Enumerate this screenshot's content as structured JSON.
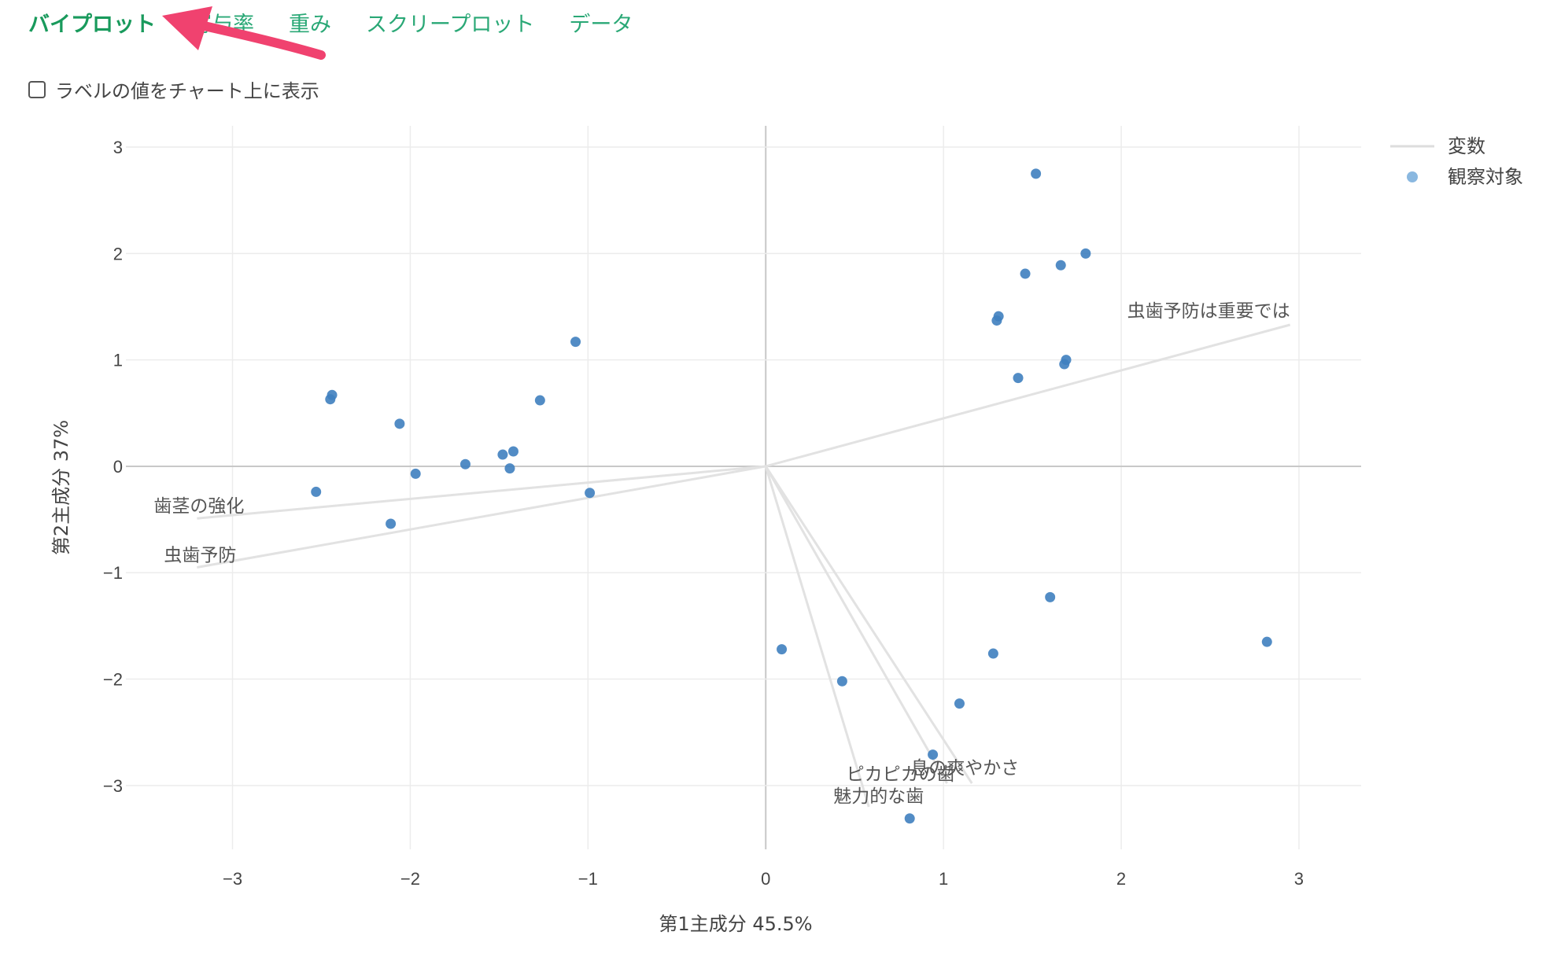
{
  "tabs": [
    {
      "label": "バイプロット",
      "active": true
    },
    {
      "label": "寄与率",
      "active": false
    },
    {
      "label": "重み",
      "active": false
    },
    {
      "label": "スクリープロット",
      "active": false
    },
    {
      "label": "データ",
      "active": false
    }
  ],
  "label_toggle": {
    "label": "ラベルの値をチャート上に表示",
    "checked": false
  },
  "colors": {
    "tab_text": "#2aa876",
    "point": "#3f7fbf",
    "variable_line": "#e2e2e2",
    "annotation_arrow": "#f0426f"
  },
  "chart_data": {
    "type": "scatter",
    "xlabel": "第1主成分 45.5%",
    "ylabel": "第2主成分 37%",
    "xlim": [
      -3.6,
      3.35
    ],
    "ylim": [
      -3.6,
      3.2
    ],
    "x_ticks": [
      -3,
      -2,
      -1,
      0,
      1,
      2,
      3
    ],
    "x_tick_labels": [
      "−3",
      "−2",
      "−1",
      "0",
      "1",
      "2",
      "3"
    ],
    "y_ticks": [
      3,
      2,
      1,
      0,
      -1,
      -2,
      -3
    ],
    "y_tick_labels": [
      "3",
      "2",
      "1",
      "0",
      "−1",
      "−2",
      "−3"
    ],
    "grid": true,
    "legend_position": "top-right",
    "legend": [
      {
        "label": "変数",
        "symbol": "line"
      },
      {
        "label": "観察対象",
        "symbol": "marker"
      }
    ],
    "observations": [
      {
        "x": 1.52,
        "y": 2.75
      },
      {
        "x": 1.8,
        "y": 2.0
      },
      {
        "x": 1.66,
        "y": 1.89
      },
      {
        "x": 1.46,
        "y": 1.81
      },
      {
        "x": 1.31,
        "y": 1.41
      },
      {
        "x": 1.3,
        "y": 1.37
      },
      {
        "x": 1.69,
        "y": 1.0
      },
      {
        "x": 1.68,
        "y": 0.96
      },
      {
        "x": 1.42,
        "y": 0.83
      },
      {
        "x": -1.07,
        "y": 1.17
      },
      {
        "x": -1.27,
        "y": 0.62
      },
      {
        "x": -2.44,
        "y": 0.67
      },
      {
        "x": -2.45,
        "y": 0.63
      },
      {
        "x": -2.06,
        "y": 0.4
      },
      {
        "x": -1.42,
        "y": 0.14
      },
      {
        "x": -1.48,
        "y": 0.11
      },
      {
        "x": -1.69,
        "y": 0.02
      },
      {
        "x": -1.44,
        "y": -0.02
      },
      {
        "x": -1.97,
        "y": -0.07
      },
      {
        "x": -2.53,
        "y": -0.24
      },
      {
        "x": -0.99,
        "y": -0.25
      },
      {
        "x": -2.11,
        "y": -0.54
      },
      {
        "x": 1.6,
        "y": -1.23
      },
      {
        "x": 2.82,
        "y": -1.65
      },
      {
        "x": 0.09,
        "y": -1.72
      },
      {
        "x": 1.28,
        "y": -1.76
      },
      {
        "x": 0.43,
        "y": -2.02
      },
      {
        "x": 1.09,
        "y": -2.23
      },
      {
        "x": 0.94,
        "y": -2.71
      },
      {
        "x": 0.81,
        "y": -3.31
      }
    ],
    "variables": [
      {
        "name": "虫歯予防は重要では",
        "x": 2.95,
        "y": 1.33
      },
      {
        "name": "歯茎の強化",
        "x": -3.2,
        "y": -0.49
      },
      {
        "name": "虫歯予防",
        "x": -3.2,
        "y": -0.95
      },
      {
        "name": "ピカピカの歯",
        "x": 1.02,
        "y": -2.98
      },
      {
        "name": "息の爽やかさ",
        "x": 1.16,
        "y": -2.98
      },
      {
        "name": "魅力的な歯",
        "x": 0.58,
        "y": -3.2
      }
    ]
  }
}
